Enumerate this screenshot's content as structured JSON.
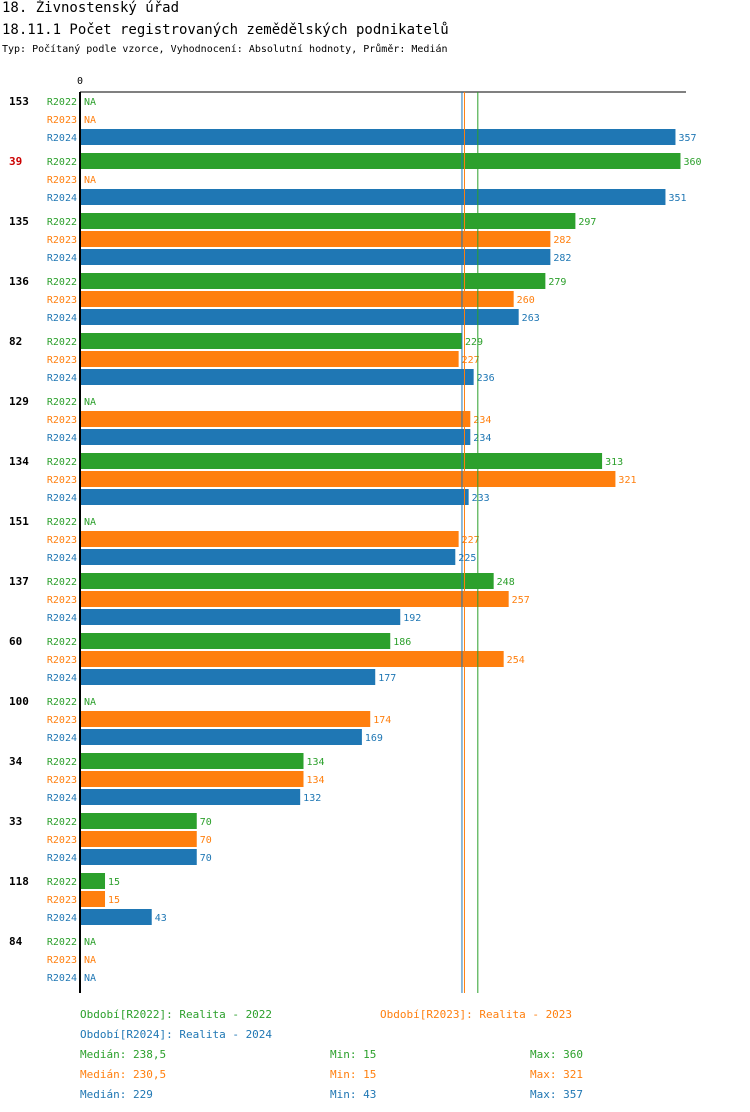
{
  "header": {
    "title": "18. Živnostenský úřad",
    "subtitle": "18.11.1 Počet registrovaných zemědělských podnikatelů",
    "type_line": "Typ: Počítaný podle vzorce, Vyhodnocení: Absolutní hodnoty, Průměr: Medián"
  },
  "colors": {
    "R2022": "#2ca02c",
    "R2023": "#ff7f0e",
    "R2024": "#1f77b4",
    "highlight": "#cc0000"
  },
  "chart_data": {
    "type": "bar",
    "orientation": "horizontal",
    "axis_zero_label": "0",
    "series_names": [
      "R2022",
      "R2023",
      "R2024"
    ],
    "na_label": "NA",
    "xlim": [
      0,
      375
    ],
    "groups": [
      {
        "label": "153",
        "highlight": false,
        "values": [
          null,
          null,
          357
        ]
      },
      {
        "label": "39",
        "highlight": true,
        "values": [
          360,
          null,
          351
        ]
      },
      {
        "label": "135",
        "highlight": false,
        "values": [
          297,
          282,
          282
        ]
      },
      {
        "label": "136",
        "highlight": false,
        "values": [
          279,
          260,
          263
        ]
      },
      {
        "label": "82",
        "highlight": false,
        "values": [
          229,
          227,
          236
        ]
      },
      {
        "label": "129",
        "highlight": false,
        "values": [
          null,
          234,
          234
        ]
      },
      {
        "label": "134",
        "highlight": false,
        "values": [
          313,
          321,
          233
        ]
      },
      {
        "label": "151",
        "highlight": false,
        "values": [
          null,
          227,
          225
        ]
      },
      {
        "label": "137",
        "highlight": false,
        "values": [
          248,
          257,
          192
        ]
      },
      {
        "label": "60",
        "highlight": false,
        "values": [
          186,
          254,
          177
        ]
      },
      {
        "label": "100",
        "highlight": false,
        "values": [
          null,
          174,
          169
        ]
      },
      {
        "label": "34",
        "highlight": false,
        "values": [
          134,
          134,
          132
        ]
      },
      {
        "label": "33",
        "highlight": false,
        "values": [
          70,
          70,
          70
        ]
      },
      {
        "label": "118",
        "highlight": false,
        "values": [
          15,
          15,
          43
        ]
      },
      {
        "label": "84",
        "highlight": false,
        "values": [
          null,
          null,
          null
        ]
      }
    ],
    "median_lines": [
      {
        "series": "R2022",
        "value": 238.5
      },
      {
        "series": "R2023",
        "value": 230.5
      },
      {
        "series": "R2024",
        "value": 229
      }
    ]
  },
  "legend": {
    "period_2022": "Období[R2022]: Realita - 2022",
    "period_2023": "Období[R2023]: Realita - 2023",
    "period_2024": "Období[R2024]: Realita - 2024",
    "stats": [
      {
        "median": "Medián: 238,5",
        "min": "Min: 15",
        "max": "Max: 360"
      },
      {
        "median": "Medián: 230,5",
        "min": "Min: 15",
        "max": "Max: 321"
      },
      {
        "median": "Medián: 229",
        "min": "Min: 43",
        "max": "Max: 357"
      }
    ]
  }
}
